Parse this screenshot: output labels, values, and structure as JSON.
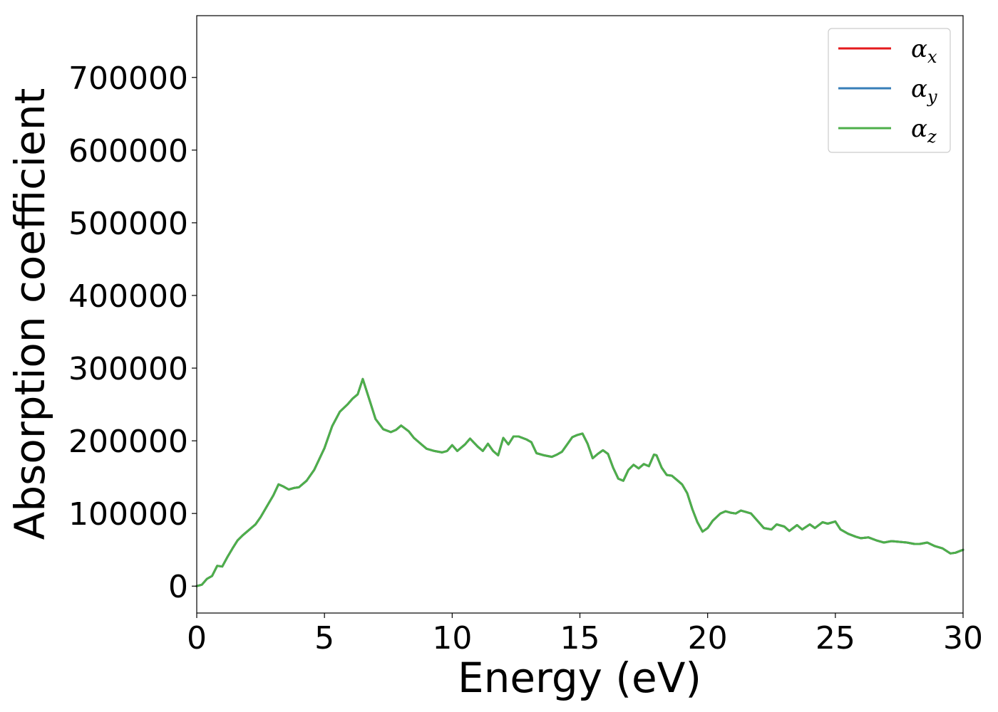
{
  "chart_data": {
    "type": "line",
    "xlabel": "Energy (eV)",
    "ylabel": "Absorption coefficient",
    "xlim": [
      0,
      30
    ],
    "ylim": [
      -37000,
      785000
    ],
    "xticks": [
      0,
      5,
      10,
      15,
      20,
      25,
      30
    ],
    "yticks": [
      0,
      100000,
      200000,
      300000,
      400000,
      500000,
      600000,
      700000
    ],
    "grid": false,
    "legend_position": "top-right",
    "legend": [
      {
        "symbol": "α",
        "sub": "x",
        "color": "#e41a1c"
      },
      {
        "symbol": "α",
        "sub": "y",
        "color": "#377eb8"
      },
      {
        "symbol": "α",
        "sub": "z",
        "color": "#4daf4a"
      }
    ],
    "x": [
      0,
      0.2,
      0.4,
      0.6,
      0.8,
      1.0,
      1.2,
      1.4,
      1.6,
      1.8,
      2.0,
      2.3,
      2.5,
      2.8,
      3.0,
      3.2,
      3.4,
      3.6,
      3.8,
      4.0,
      4.3,
      4.6,
      5.0,
      5.3,
      5.6,
      5.9,
      6.1,
      6.3,
      6.5,
      6.8,
      7.0,
      7.3,
      7.6,
      7.8,
      8.0,
      8.3,
      8.5,
      8.8,
      9.0,
      9.3,
      9.6,
      9.8,
      10.0,
      10.2,
      10.5,
      10.7,
      11.0,
      11.2,
      11.4,
      11.6,
      11.8,
      12.0,
      12.2,
      12.4,
      12.6,
      12.9,
      13.1,
      13.3,
      13.6,
      13.9,
      14.1,
      14.3,
      14.5,
      14.7,
      14.9,
      15.1,
      15.3,
      15.5,
      15.7,
      15.9,
      16.1,
      16.3,
      16.5,
      16.7,
      16.9,
      17.1,
      17.3,
      17.5,
      17.7,
      17.9,
      18.0,
      18.2,
      18.4,
      18.6,
      18.8,
      19.0,
      19.2,
      19.4,
      19.6,
      19.8,
      20.0,
      20.2,
      20.5,
      20.7,
      20.9,
      21.1,
      21.3,
      21.5,
      21.7,
      22.0,
      22.2,
      22.5,
      22.7,
      23.0,
      23.2,
      23.5,
      23.7,
      24.0,
      24.2,
      24.5,
      24.7,
      25.0,
      25.2,
      25.5,
      25.8,
      26.0,
      26.3,
      26.6,
      26.9,
      27.2,
      27.5,
      27.8,
      28.1,
      28.3,
      28.6,
      28.9,
      29.2,
      29.5,
      29.7,
      30.0
    ],
    "series": [
      {
        "name": "αx",
        "color": "#e41a1c",
        "values": [
          0,
          2000,
          10000,
          14000,
          28000,
          27000,
          40000,
          52000,
          63000,
          70000,
          76000,
          85000,
          95000,
          113000,
          125000,
          140000,
          137000,
          133000,
          135000,
          136000,
          145000,
          160000,
          190000,
          220000,
          240000,
          250000,
          258000,
          264000,
          285000,
          252000,
          230000,
          216000,
          212000,
          215000,
          221000,
          213000,
          204000,
          195000,
          189000,
          186000,
          184000,
          186000,
          194000,
          186000,
          195000,
          203000,
          192000,
          186000,
          196000,
          186000,
          180000,
          204000,
          195000,
          206000,
          206000,
          202000,
          198000,
          183000,
          180000,
          178000,
          181000,
          185000,
          195000,
          205000,
          208000,
          210000,
          196000,
          176000,
          182000,
          187000,
          182000,
          163000,
          148000,
          145000,
          160000,
          167000,
          162000,
          168000,
          165000,
          181000,
          180000,
          163000,
          153000,
          152000,
          146000,
          140000,
          128000,
          106000,
          88000,
          75000,
          80000,
          90000,
          100000,
          103000,
          101000,
          100000,
          104000,
          102000,
          100000,
          88000,
          80000,
          78000,
          85000,
          82000,
          76000,
          84000,
          78000,
          85000,
          80000,
          88000,
          86000,
          89000,
          78000,
          72000,
          68000,
          66000,
          67000,
          63000,
          60000,
          62000,
          61000,
          60000,
          58000,
          58000,
          60000,
          55000,
          52000,
          45000,
          46000,
          50000
        ]
      },
      {
        "name": "αy",
        "color": "#377eb8",
        "values": [
          0,
          2000,
          10000,
          14000,
          28000,
          27000,
          40000,
          52000,
          63000,
          70000,
          76000,
          85000,
          95000,
          113000,
          125000,
          140000,
          137000,
          133000,
          135000,
          136000,
          145000,
          160000,
          190000,
          220000,
          240000,
          250000,
          258000,
          264000,
          285000,
          252000,
          230000,
          216000,
          212000,
          215000,
          221000,
          213000,
          204000,
          195000,
          189000,
          186000,
          184000,
          186000,
          194000,
          186000,
          195000,
          203000,
          192000,
          186000,
          196000,
          186000,
          180000,
          204000,
          195000,
          206000,
          206000,
          202000,
          198000,
          183000,
          180000,
          178000,
          181000,
          185000,
          195000,
          205000,
          208000,
          210000,
          196000,
          176000,
          182000,
          187000,
          182000,
          163000,
          148000,
          145000,
          160000,
          167000,
          162000,
          168000,
          165000,
          181000,
          180000,
          163000,
          153000,
          152000,
          146000,
          140000,
          128000,
          106000,
          88000,
          75000,
          80000,
          90000,
          100000,
          103000,
          101000,
          100000,
          104000,
          102000,
          100000,
          88000,
          80000,
          78000,
          85000,
          82000,
          76000,
          84000,
          78000,
          85000,
          80000,
          88000,
          86000,
          89000,
          78000,
          72000,
          68000,
          66000,
          67000,
          63000,
          60000,
          62000,
          61000,
          60000,
          58000,
          58000,
          60000,
          55000,
          52000,
          45000,
          46000,
          50000
        ]
      },
      {
        "name": "αz",
        "color": "#4daf4a",
        "values": [
          0,
          2000,
          10000,
          14000,
          28000,
          27000,
          40000,
          52000,
          63000,
          70000,
          76000,
          85000,
          95000,
          113000,
          125000,
          140000,
          137000,
          133000,
          135000,
          136000,
          145000,
          160000,
          190000,
          220000,
          240000,
          250000,
          258000,
          264000,
          285000,
          252000,
          230000,
          216000,
          212000,
          215000,
          221000,
          213000,
          204000,
          195000,
          189000,
          186000,
          184000,
          186000,
          194000,
          186000,
          195000,
          203000,
          192000,
          186000,
          196000,
          186000,
          180000,
          204000,
          195000,
          206000,
          206000,
          202000,
          198000,
          183000,
          180000,
          178000,
          181000,
          185000,
          195000,
          205000,
          208000,
          210000,
          196000,
          176000,
          182000,
          187000,
          182000,
          163000,
          148000,
          145000,
          160000,
          167000,
          162000,
          168000,
          165000,
          181000,
          180000,
          163000,
          153000,
          152000,
          146000,
          140000,
          128000,
          106000,
          88000,
          75000,
          80000,
          90000,
          100000,
          103000,
          101000,
          100000,
          104000,
          102000,
          100000,
          88000,
          80000,
          78000,
          85000,
          82000,
          76000,
          84000,
          78000,
          85000,
          80000,
          88000,
          86000,
          89000,
          78000,
          72000,
          68000,
          66000,
          67000,
          63000,
          60000,
          62000,
          61000,
          60000,
          58000,
          58000,
          60000,
          55000,
          52000,
          45000,
          46000,
          50000
        ]
      }
    ]
  }
}
